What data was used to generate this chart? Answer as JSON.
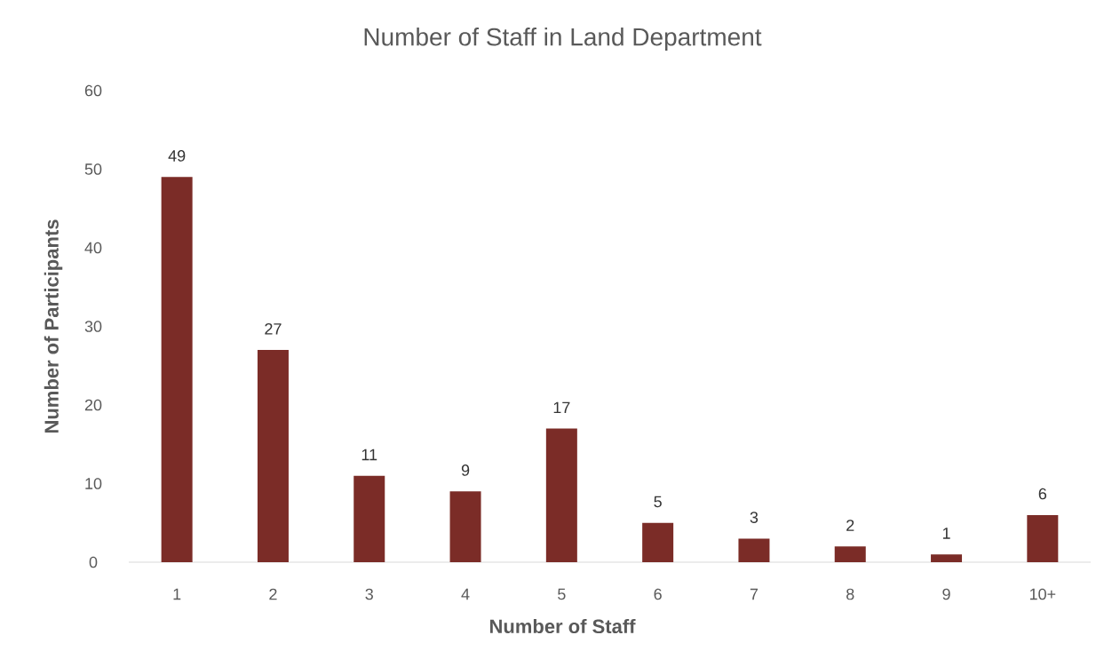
{
  "chart_data": {
    "type": "bar",
    "title": "Number of Staff in Land Department",
    "xlabel": "Number of Staff",
    "ylabel": "Number of Participants",
    "categories": [
      "1",
      "2",
      "3",
      "4",
      "5",
      "6",
      "7",
      "8",
      "9",
      "10+"
    ],
    "values": [
      49,
      27,
      11,
      9,
      17,
      5,
      3,
      2,
      1,
      6
    ],
    "color": "#7b2c27",
    "ylim": [
      0,
      60
    ],
    "yticks": [
      0,
      10,
      20,
      30,
      40,
      50,
      60
    ],
    "data_labels": true
  }
}
